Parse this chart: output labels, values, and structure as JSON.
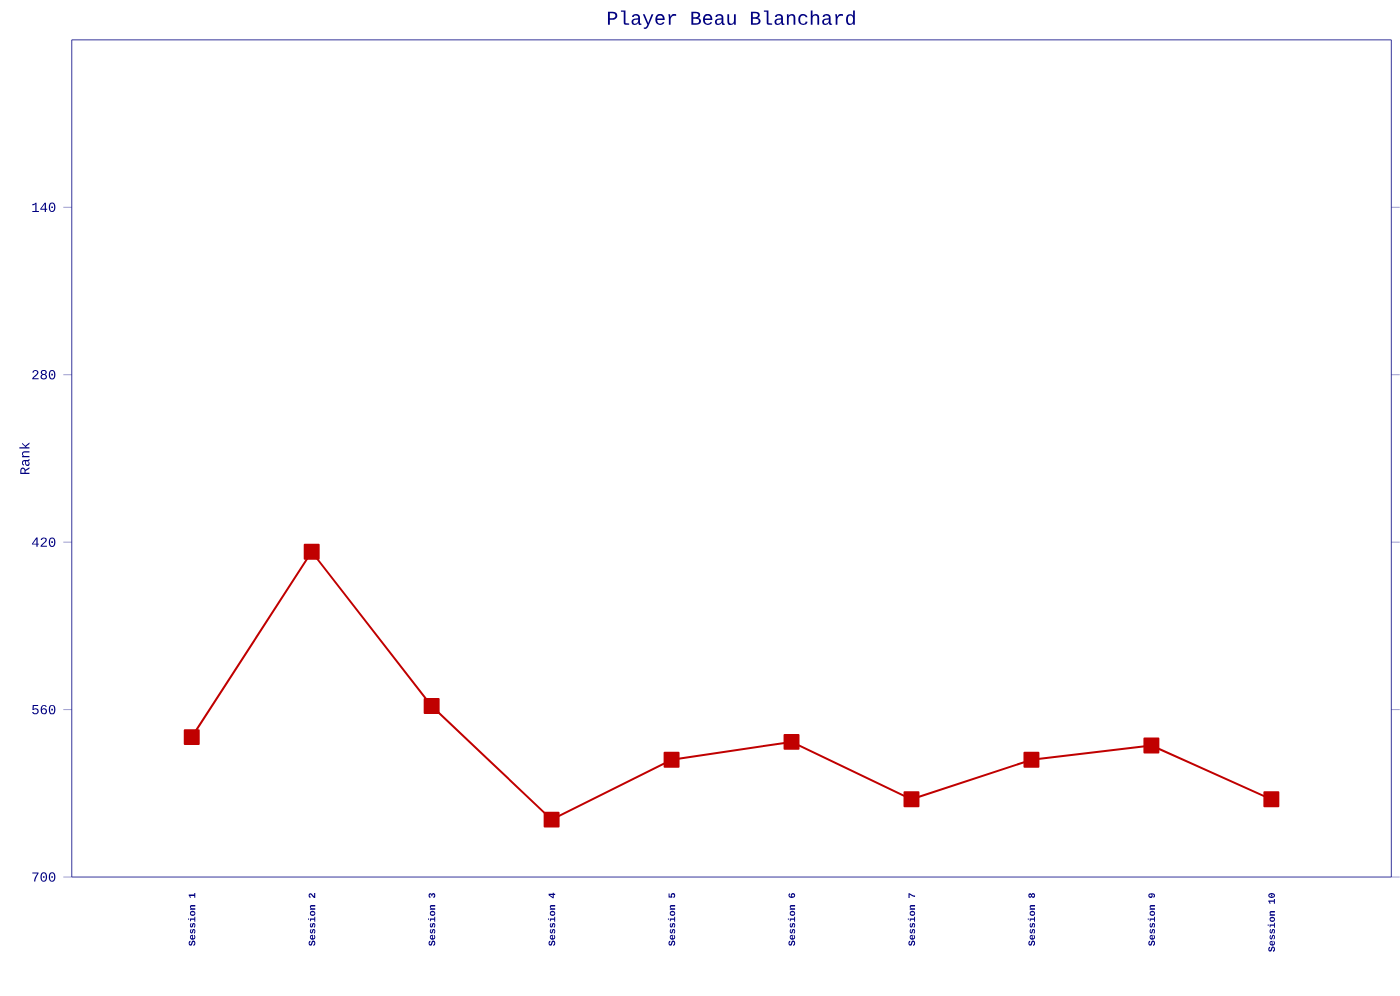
{
  "chart_data": {
    "type": "line",
    "title": "Player Beau Blanchard",
    "ylabel": "Rank",
    "categories": [
      "Session 1",
      "Session 2",
      "Session 3",
      "Session 4",
      "Session 5",
      "Session 6",
      "Session 7",
      "Session 8",
      "Session 9",
      "Session 10"
    ],
    "series": [
      {
        "color": "#c00000",
        "values": [
          583,
          428,
          557,
          652,
          602,
          587,
          635,
          602,
          590,
          635
        ]
      }
    ],
    "ylim": [
      700,
      0
    ],
    "yticks": [
      140,
      280,
      420,
      560,
      700
    ],
    "marker": "square",
    "line_style": "solid"
  }
}
